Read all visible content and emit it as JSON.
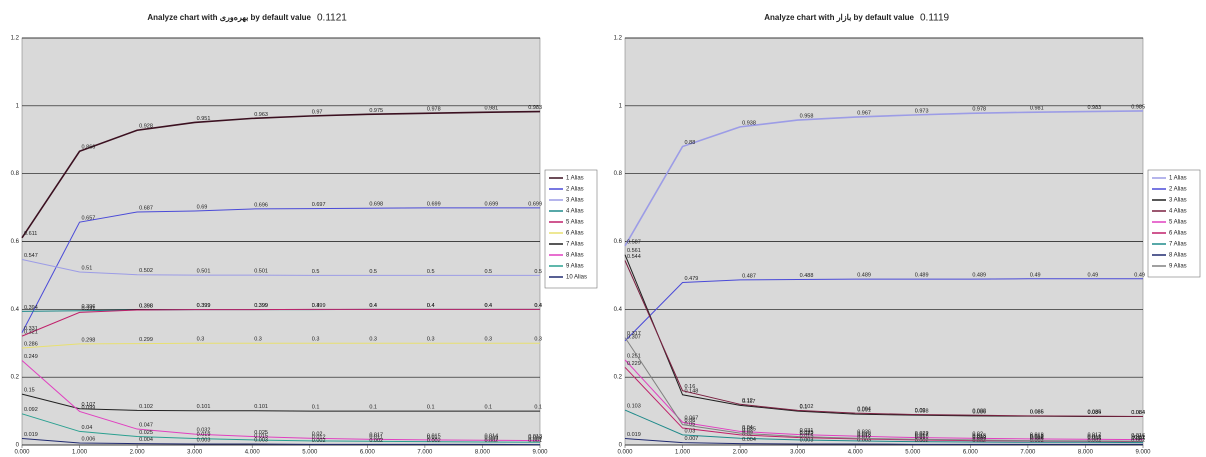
{
  "chart_data": [
    {
      "type": "line",
      "title": "Analyze chart with بهره‌وری by default value",
      "default_value": "0.1121",
      "x": [
        0,
        1,
        2,
        3,
        4,
        5,
        6,
        7,
        8,
        9
      ],
      "xlim": [
        0,
        9
      ],
      "xticks": [
        {
          "value": 0,
          "label": "0.000"
        },
        {
          "value": 1,
          "label": "1.000"
        },
        {
          "value": 2,
          "label": "2.000"
        },
        {
          "value": 3,
          "label": "3.000"
        },
        {
          "value": 4,
          "label": "4.000"
        },
        {
          "value": 5,
          "label": "5.000"
        },
        {
          "value": 6,
          "label": "6.000"
        },
        {
          "value": 7,
          "label": "7.000"
        },
        {
          "value": 8,
          "label": "8.000"
        },
        {
          "value": 9,
          "label": "9.000"
        }
      ],
      "ylim": [
        0,
        1.2
      ],
      "yticks": [
        0,
        0.2,
        0.4,
        0.6,
        0.8,
        1,
        1.2
      ],
      "grid": true,
      "series": [
        {
          "name": "1 Alias",
          "color": "#3b1020",
          "values": [
            0.611,
            0.866,
            0.928,
            0.951,
            0.963,
            0.97,
            0.975,
            0.978,
            0.981,
            0.983
          ]
        },
        {
          "name": "2 Alias",
          "color": "#4a4ad8",
          "values": [
            0.331,
            0.657,
            0.687,
            0.69,
            0.696,
            0.697,
            0.698,
            0.699,
            0.699,
            0.699
          ]
        },
        {
          "name": "3 Alias",
          "color": "#9c9ce6",
          "values": [
            0.547,
            0.51,
            0.502,
            0.501,
            0.501,
            0.5,
            0.5,
            0.5,
            0.5,
            0.5
          ]
        },
        {
          "name": "4 Alias",
          "color": "#1f8a8a",
          "values": [
            0.394,
            0.396,
            0.398,
            0.399,
            0.399,
            0.399,
            0.4,
            0.4,
            0.4,
            0.4
          ]
        },
        {
          "name": "5 Alias",
          "color": "#c0206a",
          "values": [
            0.321,
            0.391,
            0.398,
            0.399,
            0.399,
            0.4,
            0.4,
            0.4,
            0.4,
            0.4
          ]
        },
        {
          "name": "6 Alias",
          "color": "#e8e070",
          "values": [
            0.286,
            0.298,
            0.299,
            0.3,
            0.3,
            0.3,
            0.3,
            0.3,
            0.3,
            0.3
          ]
        },
        {
          "name": "7 Alias",
          "color": "#202020",
          "values": [
            0.15,
            0.107,
            0.102,
            0.101,
            0.101,
            0.1,
            0.1,
            0.1,
            0.1,
            0.1
          ]
        },
        {
          "name": "8 Alias",
          "color": "#e040c0",
          "values": [
            0.249,
            0.099,
            0.047,
            0.032,
            0.025,
            0.02,
            0.017,
            0.015,
            0.014,
            0.013
          ]
        },
        {
          "name": "9 Alias",
          "color": "#2aa090",
          "values": [
            0.092,
            0.04,
            0.025,
            0.019,
            0.015,
            0.012,
            0.011,
            0.01,
            0.009,
            0.008
          ]
        },
        {
          "name": "10 Alias",
          "color": "#202a70",
          "values": [
            0.019,
            0.006,
            0.004,
            0.003,
            0.003,
            0.002,
            0.002,
            0.002,
            0.002,
            0.001
          ]
        }
      ]
    },
    {
      "type": "line",
      "title": "Analyze chart with بازار by default value",
      "default_value": "0.1119",
      "x": [
        0,
        1,
        2,
        3,
        4,
        5,
        6,
        7,
        8,
        9
      ],
      "xlim": [
        0,
        9
      ],
      "xticks": [
        {
          "value": 0,
          "label": "0.000"
        },
        {
          "value": 1,
          "label": "1.000"
        },
        {
          "value": 2,
          "label": "2.000"
        },
        {
          "value": 3,
          "label": "3.000"
        },
        {
          "value": 4,
          "label": "4.000"
        },
        {
          "value": 5,
          "label": "5.000"
        },
        {
          "value": 6,
          "label": "6.000"
        },
        {
          "value": 7,
          "label": "7.000"
        },
        {
          "value": 8,
          "label": "8.000"
        },
        {
          "value": 9,
          "label": "9.000"
        }
      ],
      "ylim": [
        0,
        1.2
      ],
      "yticks": [
        0,
        0.2,
        0.4,
        0.6,
        0.8,
        1,
        1.2
      ],
      "grid": true,
      "series": [
        {
          "name": "1 Alias",
          "color": "#9c9ce6",
          "values": [
            0.587,
            0.88,
            0.938,
            0.958,
            0.967,
            0.973,
            0.978,
            0.981,
            0.983,
            0.985
          ]
        },
        {
          "name": "2 Alias",
          "color": "#4a4ad8",
          "values": [
            0.307,
            0.479,
            0.487,
            0.488,
            0.489,
            0.489,
            0.489,
            0.49,
            0.49,
            0.49
          ]
        },
        {
          "name": "3 Alias",
          "color": "#202020",
          "values": [
            0.561,
            0.148,
            0.117,
            0.1,
            0.091,
            0.088,
            0.086,
            0.085,
            0.084,
            0.084
          ]
        },
        {
          "name": "4 Alias",
          "color": "#7a2040",
          "values": [
            0.544,
            0.16,
            0.12,
            0.102,
            0.094,
            0.09,
            0.088,
            0.086,
            0.085,
            0.084
          ]
        },
        {
          "name": "5 Alias",
          "color": "#e040c0",
          "values": [
            0.251,
            0.067,
            0.04,
            0.031,
            0.026,
            0.022,
            0.02,
            0.018,
            0.017,
            0.016
          ]
        },
        {
          "name": "6 Alias",
          "color": "#c0206a",
          "values": [
            0.229,
            0.05,
            0.03,
            0.022,
            0.018,
            0.015,
            0.013,
            0.012,
            0.011,
            0.01
          ]
        },
        {
          "name": "7 Alias",
          "color": "#1f8a8a",
          "values": [
            0.103,
            0.03,
            0.02,
            0.015,
            0.012,
            0.01,
            0.009,
            0.008,
            0.008,
            0.007
          ]
        },
        {
          "name": "8 Alias",
          "color": "#202a70",
          "values": [
            0.019,
            0.007,
            0.004,
            0.003,
            0.003,
            0.002,
            0.002,
            0.002,
            0.002,
            0.002
          ]
        },
        {
          "name": "9 Alias",
          "color": "#808080",
          "values": [
            0.317,
            0.06,
            0.035,
            0.025,
            0.02,
            0.017,
            0.015,
            0.013,
            0.012,
            0.011
          ]
        }
      ]
    }
  ]
}
